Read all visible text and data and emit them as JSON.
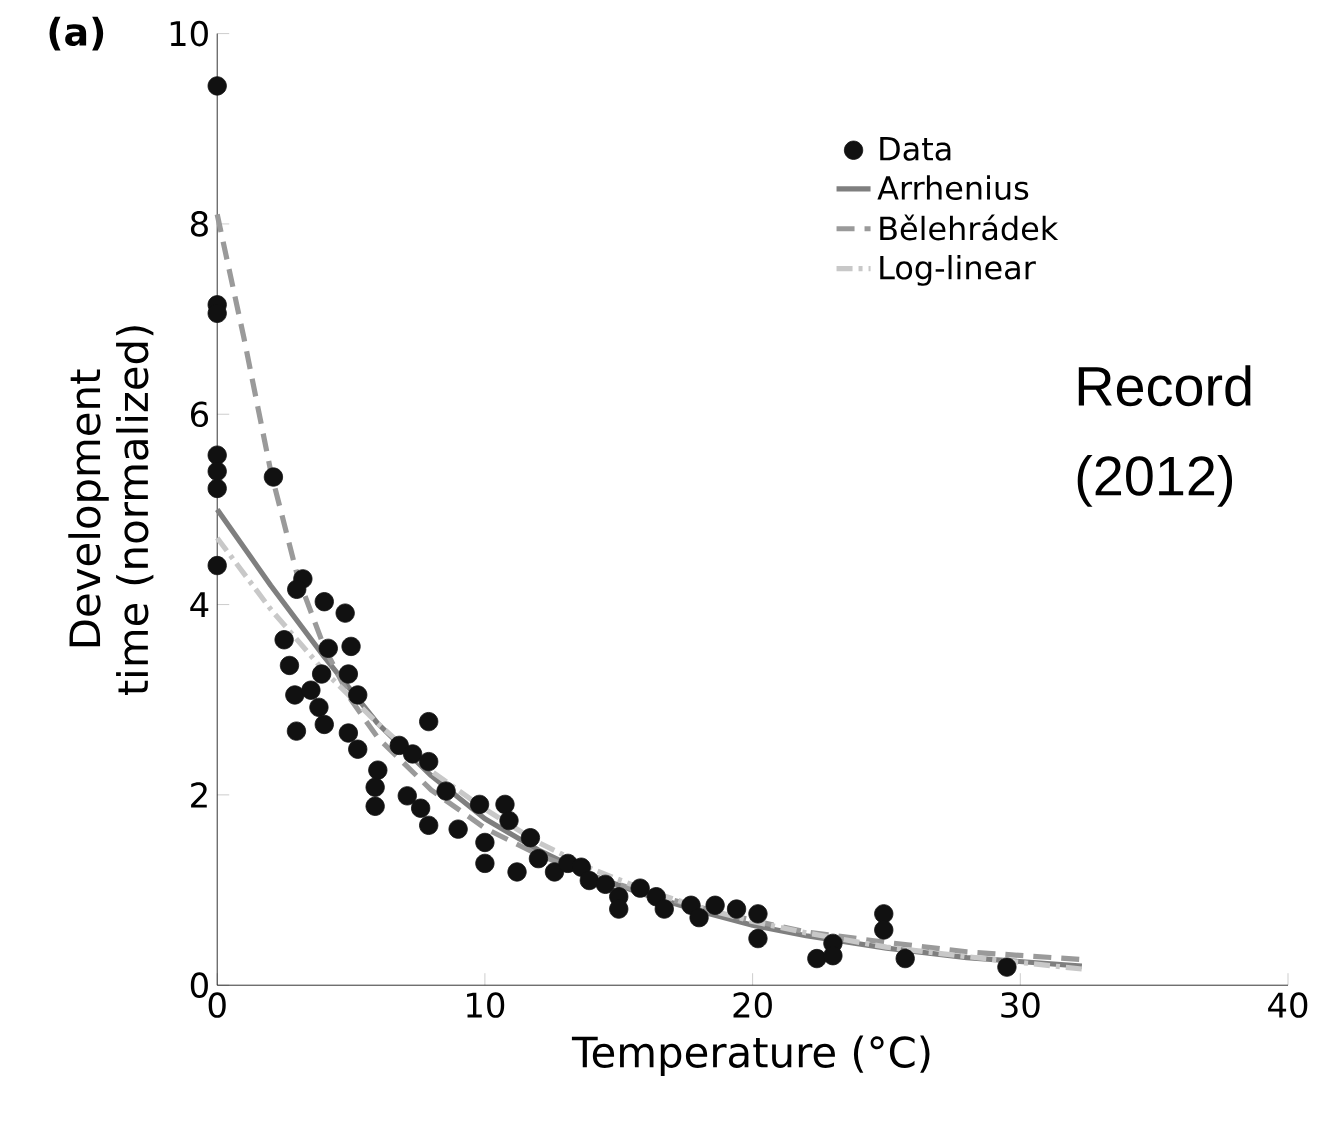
{
  "chart_data": {
    "type": "scatter",
    "xlabel": "Temperature (°C)",
    "ylabel": "Development time (normalized)",
    "xlim": [
      0,
      40
    ],
    "ylim": [
      0,
      10
    ],
    "xticks": [
      0,
      10,
      20,
      30,
      40
    ],
    "yticks": [
      0,
      2,
      4,
      6,
      8,
      10
    ],
    "grid": false,
    "legend": "top right",
    "annotations": [
      "(a)",
      "Record",
      "(2012)"
    ],
    "series": [
      {
        "name": "Data",
        "marker": "circle",
        "color": "#111111",
        "x": [
          0,
          0,
          0,
          0,
          0,
          0,
          0,
          2.1,
          3.2,
          2.97,
          4.0,
          4.78,
          2.5,
          2.7,
          2.9,
          2.96,
          3.5,
          3.8,
          4.0,
          4.15,
          3.9,
          5.0,
          4.9,
          5.25,
          4.9,
          5.25,
          6.0,
          5.9,
          5.9,
          6.8,
          7.3,
          7.1,
          7.6,
          7.9,
          7.9,
          7.9,
          8.55,
          9.0,
          9.8,
          10,
          10,
          10.75,
          10.9,
          11.2,
          11.7,
          12.0,
          12.6,
          13.1,
          13.6,
          13.9,
          14.5,
          15.0,
          15.0,
          15.8,
          16.4,
          16.7,
          17.7,
          18.0,
          18.6,
          19.4,
          20.2,
          20.2,
          22.4,
          23.0,
          23.0,
          24.9,
          24.9,
          25.7,
          29.5
        ],
        "values": [
          9.45,
          7.15,
          7.06,
          5.57,
          5.4,
          5.22,
          4.41,
          5.34,
          4.27,
          4.16,
          4.03,
          3.91,
          3.63,
          3.36,
          3.05,
          2.67,
          3.1,
          2.92,
          2.74,
          3.54,
          3.27,
          3.56,
          3.27,
          3.05,
          2.65,
          2.48,
          2.26,
          2.08,
          1.88,
          2.52,
          2.43,
          1.99,
          1.86,
          1.68,
          2.77,
          2.35,
          2.04,
          1.64,
          1.9,
          1.5,
          1.28,
          1.9,
          1.73,
          1.19,
          1.55,
          1.33,
          1.19,
          1.28,
          1.24,
          1.1,
          1.06,
          0.93,
          0.8,
          1.02,
          0.93,
          0.8,
          0.84,
          0.71,
          0.84,
          0.8,
          0.75,
          0.49,
          0.28,
          0.44,
          0.31,
          0.75,
          0.58,
          0.28,
          0.19
        ]
      },
      {
        "name": "Arrhenius",
        "type": "line",
        "line_style": "solid",
        "marker": "none",
        "color": "#7f7f7f",
        "x": [
          0,
          2,
          4,
          6,
          8,
          10,
          12,
          14,
          16,
          18,
          20,
          22,
          25,
          28,
          32.3
        ],
        "values": [
          5.0,
          4.2,
          3.45,
          2.75,
          2.2,
          1.75,
          1.42,
          1.15,
          0.95,
          0.78,
          0.63,
          0.52,
          0.39,
          0.29,
          0.2
        ]
      },
      {
        "name": "Bělehrádek",
        "type": "line",
        "line_style": "dashed",
        "marker": "none",
        "color": "#9a9a9a",
        "x": [
          0,
          1,
          2,
          3,
          4,
          5,
          6,
          8,
          10,
          12,
          14,
          16,
          18,
          20,
          22,
          25,
          28,
          32.3
        ],
        "values": [
          8.1,
          6.8,
          5.4,
          4.3,
          3.55,
          3.0,
          2.6,
          2.05,
          1.65,
          1.37,
          1.15,
          0.97,
          0.82,
          0.68,
          0.56,
          0.45,
          0.35,
          0.27
        ]
      },
      {
        "name": "Log-linear",
        "type": "line",
        "line_style": "dashdot",
        "marker": "none",
        "color": "#c8c8c8",
        "x": [
          0,
          2,
          4,
          6,
          8,
          10,
          12,
          14,
          16,
          18,
          20,
          22,
          25,
          28,
          32.3
        ],
        "values": [
          4.7,
          3.95,
          3.3,
          2.75,
          2.25,
          1.85,
          1.5,
          1.22,
          1.0,
          0.82,
          0.67,
          0.55,
          0.4,
          0.3,
          0.17
        ]
      }
    ]
  }
}
